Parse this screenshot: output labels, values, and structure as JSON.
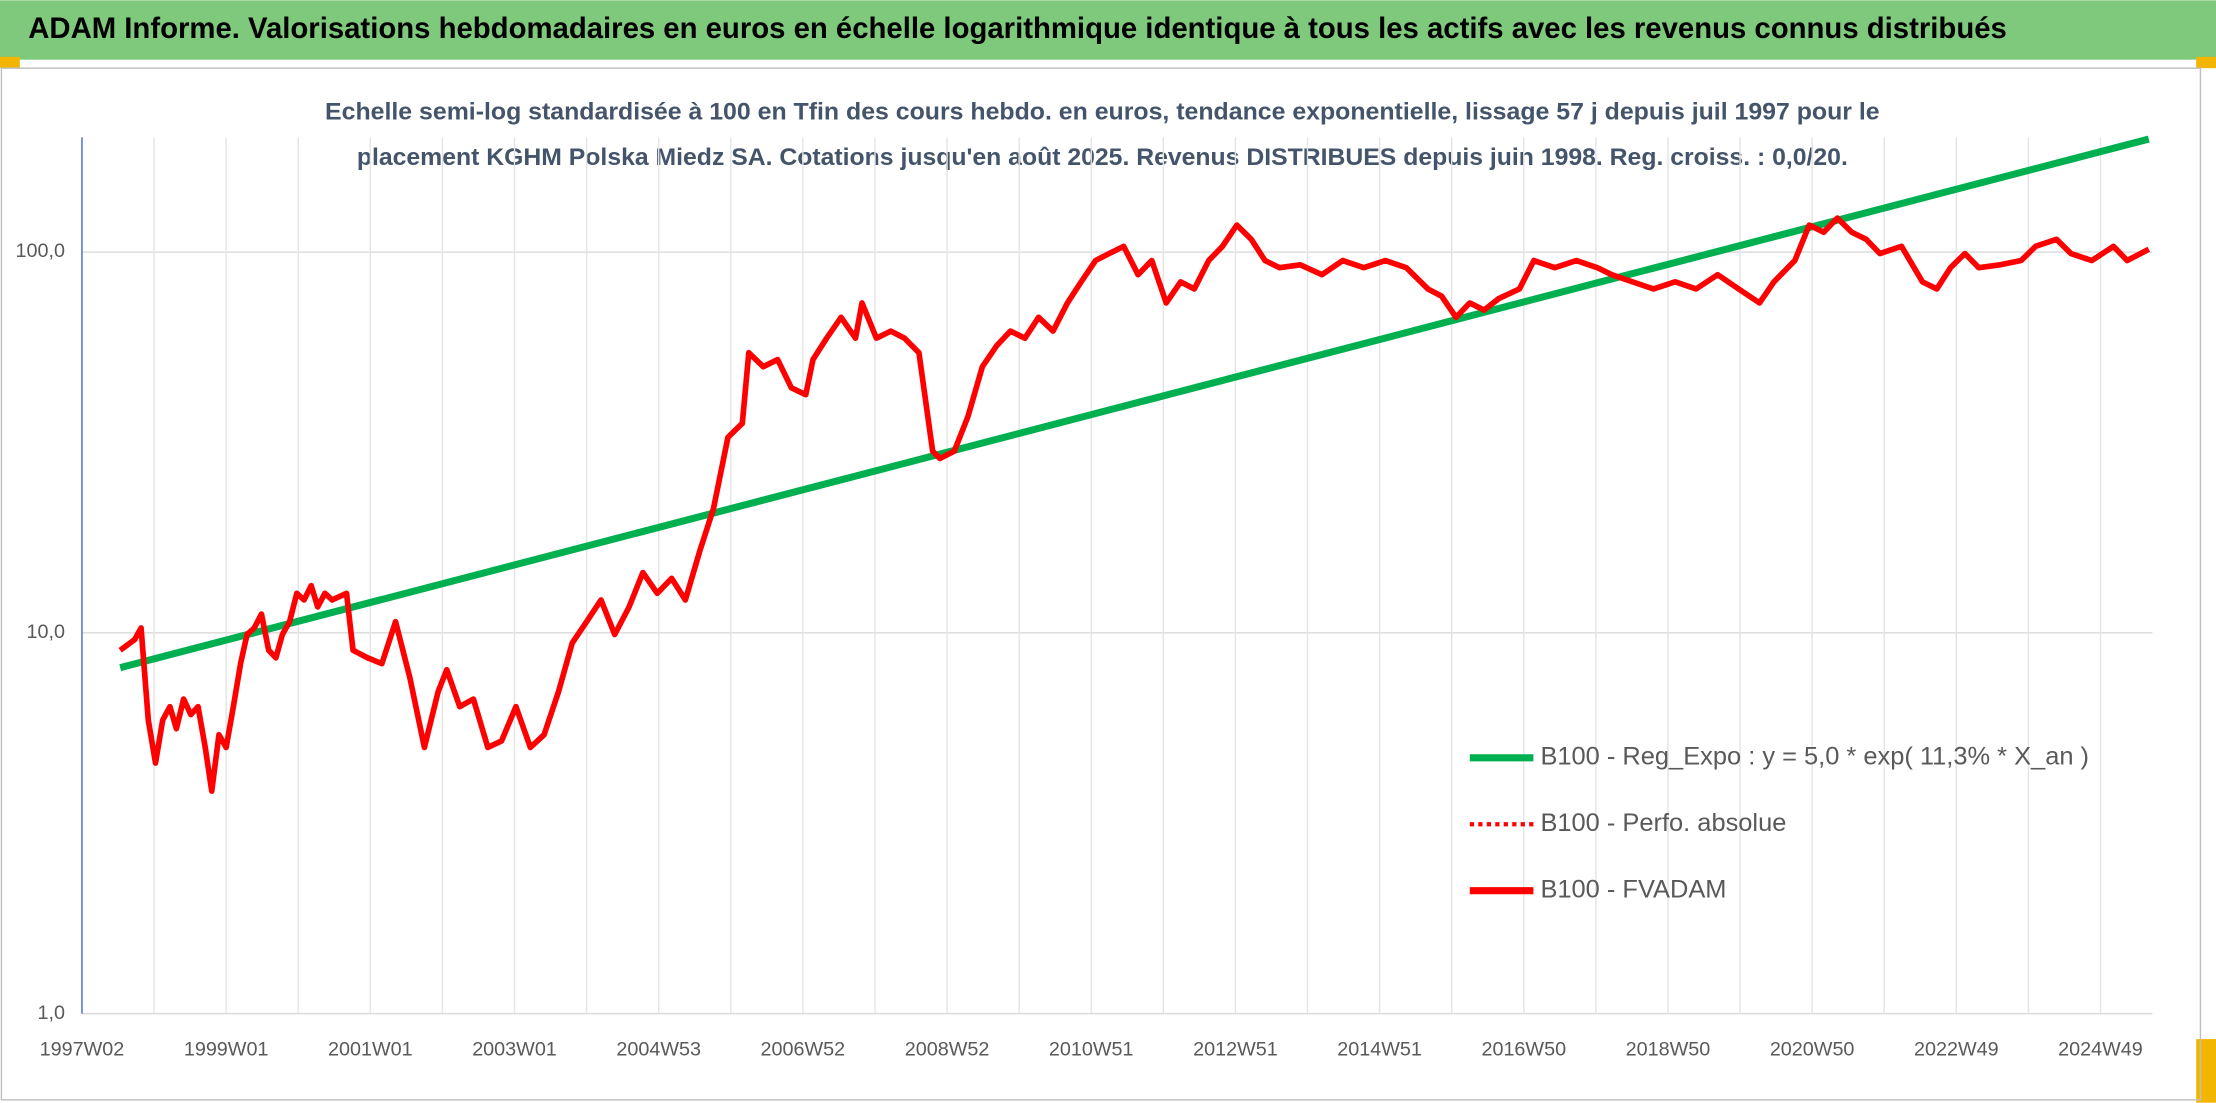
{
  "header": {
    "title": "ADAM Informe. Valorisations hebdomadaires en euros en échelle logarithmique identique à tous les actifs avec les revenus connus distribués"
  },
  "chart_data": {
    "type": "line",
    "subtitle": [
      "Echelle semi-log standardisée à 100 en Tfin des cours hebdo. en euros, tendance exponentielle, lissage 57 j depuis juil 1997 pour le",
      "placement KGHM Polska Miedz SA. Cotations jusqu'en août 2025. Revenus DISTRIBUES depuis juin 1998. Reg. croiss. : 0,0/20."
    ],
    "log_y": true,
    "grid": true,
    "legend": "lower right",
    "xlim": [
      1997,
      2025.72
    ],
    "xticks": [
      {
        "value": 1997,
        "label": "1997W02"
      },
      {
        "value": 1999,
        "label": "1999W01"
      },
      {
        "value": 2001,
        "label": "2001W01"
      },
      {
        "value": 2003,
        "label": "2003W01"
      },
      {
        "value": 2005,
        "label": "2004W53"
      },
      {
        "value": 2007,
        "label": "2006W52"
      },
      {
        "value": 2009,
        "label": "2008W52"
      },
      {
        "value": 2011,
        "label": "2010W51"
      },
      {
        "value": 2013,
        "label": "2012W51"
      },
      {
        "value": 2015,
        "label": "2014W51"
      },
      {
        "value": 2017,
        "label": "2016W50"
      },
      {
        "value": 2019,
        "label": "2018W50"
      },
      {
        "value": 2021,
        "label": "2020W50"
      },
      {
        "value": 2023,
        "label": "2022W49"
      },
      {
        "value": 2025,
        "label": "2024W49"
      }
    ],
    "ylim": [
      1,
      200
    ],
    "yticks": [
      {
        "value": 1,
        "label": "1,0"
      },
      {
        "value": 10,
        "label": "10,0"
      },
      {
        "value": 100,
        "label": "100,0"
      }
    ],
    "series": [
      {
        "name": "B100 - Reg_Expo : y = 5,0 * exp( 11,3% *  X_an )",
        "color": "#00b050",
        "style": "solid",
        "x": [
          1997.53,
          2025.67
        ],
        "values": [
          8.1,
          198
        ]
      },
      {
        "name": "B100 - Perfo. absolue",
        "color": "#ff0000",
        "style": "dotted",
        "x": [],
        "values": []
      },
      {
        "name": "B100 - FVADAM",
        "color": "#ff0000",
        "style": "solid",
        "x": [
          1997.53,
          1997.73,
          1997.82,
          1997.92,
          1998.02,
          1998.12,
          1998.22,
          1998.31,
          1998.41,
          1998.51,
          1998.61,
          1998.71,
          1998.8,
          1998.9,
          1999.0,
          1999.1,
          1999.2,
          1999.29,
          1999.39,
          1999.49,
          1999.59,
          1999.69,
          1999.78,
          1999.88,
          1999.98,
          2000.08,
          2000.18,
          2000.27,
          2000.37,
          2000.47,
          2000.67,
          2000.76,
          2000.96,
          2001.16,
          2001.35,
          2001.55,
          2001.75,
          2001.94,
          2002.06,
          2002.24,
          2002.43,
          2002.63,
          2002.82,
          2003.02,
          2003.22,
          2003.41,
          2003.61,
          2003.8,
          2004.0,
          2004.2,
          2004.39,
          2004.59,
          2004.78,
          2004.98,
          2005.18,
          2005.37,
          2005.57,
          2005.76,
          2005.96,
          2006.16,
          2006.25,
          2006.45,
          2006.65,
          2006.84,
          2007.04,
          2007.14,
          2007.33,
          2007.53,
          2007.73,
          2007.82,
          2008.02,
          2008.22,
          2008.41,
          2008.61,
          2008.8,
          2008.9,
          2009.1,
          2009.29,
          2009.49,
          2009.69,
          2009.88,
          2010.08,
          2010.27,
          2010.47,
          2010.67,
          2010.86,
          2011.06,
          2011.25,
          2011.45,
          2011.65,
          2011.84,
          2012.04,
          2012.24,
          2012.43,
          2012.63,
          2012.82,
          2013.02,
          2013.22,
          2013.41,
          2013.61,
          2013.9,
          2014.2,
          2014.49,
          2014.78,
          2015.08,
          2015.37,
          2015.67,
          2015.86,
          2016.06,
          2016.25,
          2016.45,
          2016.65,
          2016.94,
          2017.14,
          2017.43,
          2017.73,
          2018.02,
          2018.22,
          2018.51,
          2018.8,
          2019.1,
          2019.39,
          2019.69,
          2019.98,
          2020.27,
          2020.47,
          2020.76,
          2020.96,
          2021.16,
          2021.35,
          2021.55,
          2021.75,
          2021.94,
          2022.24,
          2022.53,
          2022.73,
          2022.92,
          2023.12,
          2023.31,
          2023.61,
          2023.9,
          2024.1,
          2024.39,
          2024.59,
          2024.88,
          2025.18,
          2025.37,
          2025.67
        ],
        "values": [
          9.0,
          9.6,
          10.3,
          5.9,
          4.55,
          5.9,
          6.4,
          5.6,
          6.7,
          6.1,
          6.4,
          5.0,
          3.84,
          5.4,
          5.0,
          6.4,
          8.3,
          9.9,
          10.3,
          11.2,
          9.0,
          8.6,
          9.9,
          10.7,
          12.7,
          12.2,
          13.3,
          11.7,
          12.7,
          12.2,
          12.7,
          9.0,
          8.6,
          8.3,
          10.7,
          7.6,
          5.0,
          7.0,
          8.0,
          6.4,
          6.7,
          5.0,
          5.2,
          6.4,
          5.0,
          5.4,
          7.0,
          9.4,
          10.7,
          12.2,
          9.9,
          11.7,
          14.4,
          12.7,
          13.9,
          12.2,
          16.4,
          21.2,
          32.6,
          35.5,
          54.4,
          50.0,
          52.2,
          44.0,
          42.2,
          52.2,
          59.4,
          67.4,
          59.4,
          73.5,
          59.4,
          62.0,
          59.4,
          54.4,
          30.0,
          28.7,
          30.0,
          37.0,
          50.0,
          56.8,
          62.0,
          59.4,
          67.4,
          62.0,
          73.5,
          83.5,
          95.0,
          99.1,
          103.5,
          87.2,
          95.0,
          73.5,
          83.5,
          80.0,
          95.0,
          103.5,
          117.7,
          108.0,
          95.0,
          91.0,
          92.6,
          87.2,
          95.0,
          91.0,
          95.0,
          91.0,
          80.0,
          76.6,
          67.4,
          73.5,
          70.4,
          75.4,
          80.0,
          95.0,
          91.0,
          95.0,
          91.0,
          87.2,
          83.5,
          80.0,
          83.5,
          80.0,
          87.2,
          80.0,
          73.5,
          83.5,
          95.0,
          117.7,
          112.7,
          122.8,
          112.7,
          108.0,
          99.1,
          103.5,
          83.5,
          80.0,
          91.0,
          99.1,
          91.0,
          92.6,
          95.0,
          103.5,
          108.0,
          99.1,
          95.0,
          103.5,
          95.0,
          101.7
        ]
      }
    ]
  }
}
